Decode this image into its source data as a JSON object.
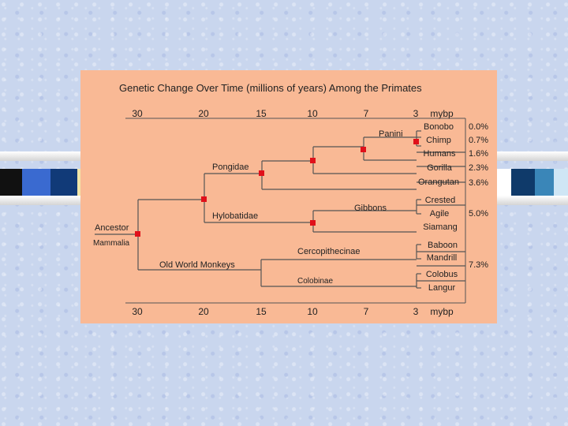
{
  "title": "Genetic Change Over Time (millions of years) Among the Primates",
  "axis": {
    "ticks": [
      "30",
      "20",
      "15",
      "10",
      "7",
      "3"
    ],
    "unit": "mybp"
  },
  "clades": {
    "panini": "Panini",
    "pongidae": "Pongidae",
    "hylobatidae": "Hylobatidae",
    "gibbons": "Gibbons",
    "ancestor": "Ancestor",
    "mammalia": "Mammalia",
    "cercopithecinae": "Cercopithecinae",
    "old_world_monkeys": "Old World Monkeys",
    "colobinae": "Colobinae"
  },
  "species": {
    "bonobo": "Bonobo",
    "chimp": "Chimp",
    "humans": "Humans",
    "gorilla": "Gorilla",
    "orangutan": "Orangutan",
    "crested": "Crested",
    "agile": "Agile",
    "siamang": "Siamang",
    "baboon": "Baboon",
    "mandrill": "Mandrill",
    "colobus": "Colobus",
    "langur": "Langur"
  },
  "percents": {
    "bonobo": "0.0%",
    "chimp": "0.7%",
    "humans": "1.6%",
    "gorilla": "2.3%",
    "orangutan": "3.6%",
    "gibbons": "5.0%",
    "monkeys": "7.3%"
  },
  "colors": {
    "background": "#c9d6ee",
    "panel": "#f9b995",
    "node_marker": "#e0101a",
    "branch": "#555555"
  }
}
